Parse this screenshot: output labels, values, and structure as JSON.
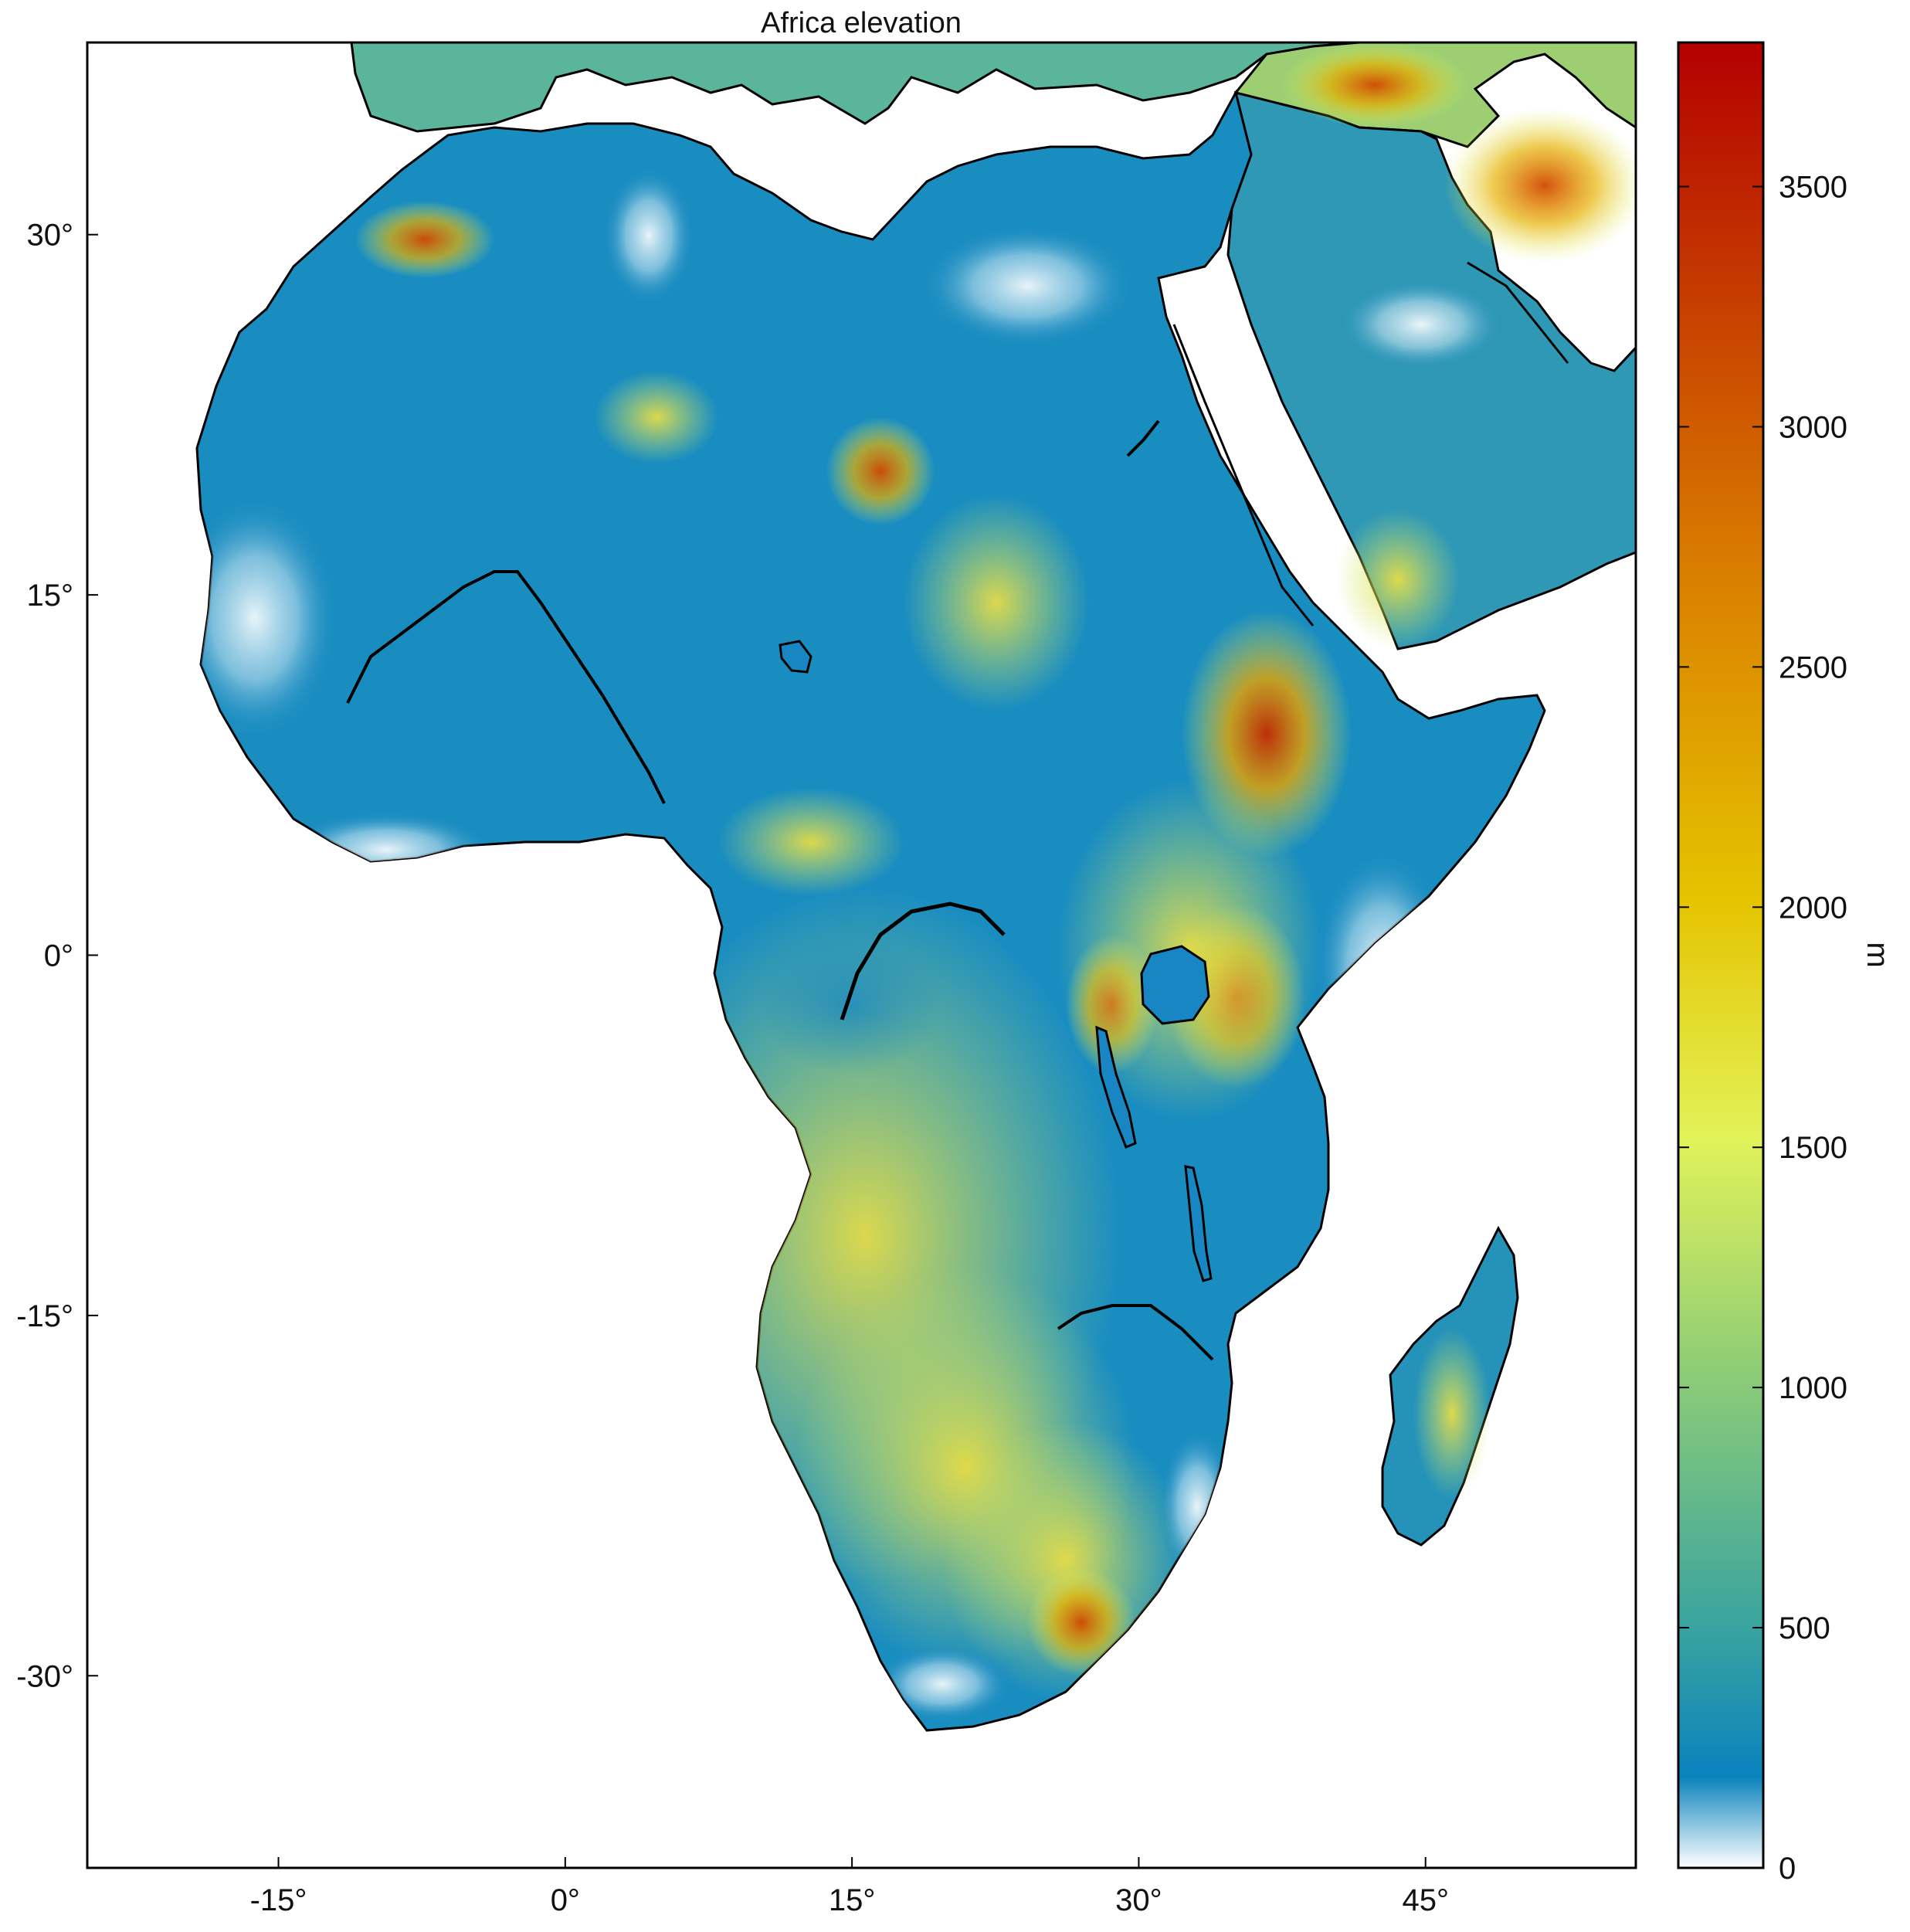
{
  "map": {
    "title": "Africa elevation",
    "lon_range": [
      -25,
      56
    ],
    "lat_range": [
      -38,
      38
    ],
    "x_ticks": [
      {
        "value": -15,
        "label": "-15°"
      },
      {
        "value": 0,
        "label": "0°"
      },
      {
        "value": 15,
        "label": "15°"
      },
      {
        "value": 30,
        "label": "30°"
      },
      {
        "value": 45,
        "label": "45°"
      }
    ],
    "y_ticks": [
      {
        "value": 30,
        "label": "30°"
      },
      {
        "value": 15,
        "label": "15°"
      },
      {
        "value": 0,
        "label": "0°"
      },
      {
        "value": -15,
        "label": "-15°"
      },
      {
        "value": -30,
        "label": "-30°"
      }
    ],
    "ocean_color": "#ffffff",
    "coastline_color": "#000000"
  },
  "colorbar": {
    "label": "m",
    "range": [
      0,
      3800
    ],
    "ticks": [
      {
        "value": 0,
        "label": "0"
      },
      {
        "value": 500,
        "label": "500"
      },
      {
        "value": 1000,
        "label": "1000"
      },
      {
        "value": 1500,
        "label": "1500"
      },
      {
        "value": 2000,
        "label": "2000"
      },
      {
        "value": 2500,
        "label": "2500"
      },
      {
        "value": 3000,
        "label": "3000"
      },
      {
        "value": 3500,
        "label": "3500"
      }
    ],
    "colors": [
      "#ffffff",
      "#0a82bd",
      "#38a3a0",
      "#92cf74",
      "#e2f259",
      "#e5c400",
      "#d97a00",
      "#b40000"
    ]
  }
}
